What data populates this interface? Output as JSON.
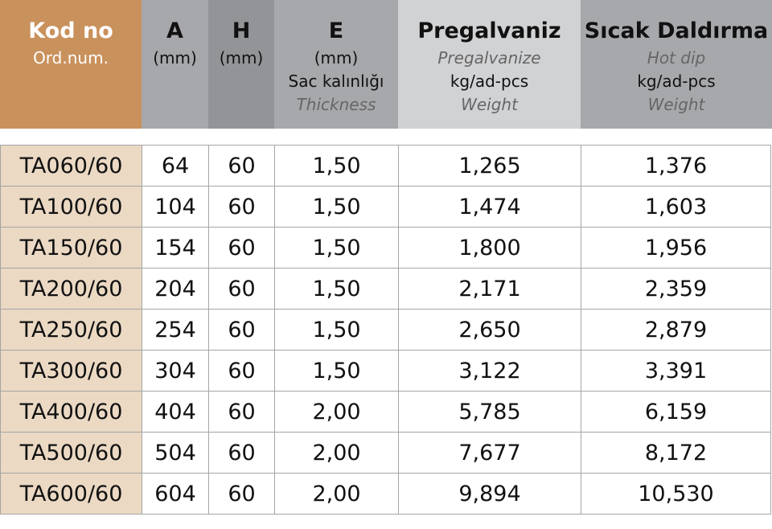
{
  "colors": {
    "kod_header": "#C9915C",
    "a_header": "#A7A8AB",
    "h_header": "#939497",
    "e_header": "#A7A8AB",
    "preg_header": "#D1D2D4",
    "sicak_header": "#A7A8AB",
    "kod_cell": "#EBD9C4"
  },
  "headers": {
    "kod": {
      "title": "Kod no",
      "sub": "Ord.num."
    },
    "a": {
      "title": "A",
      "unit": "(mm)"
    },
    "h": {
      "title": "H",
      "unit": "(mm)"
    },
    "e": {
      "title": "E",
      "unit": "(mm)",
      "sub": "Sac kalınlığı",
      "en": "Thickness"
    },
    "preg": {
      "title": "Pregalvaniz",
      "en": "Pregalvanize",
      "unit": "kg/ad-pcs",
      "en2": "Weight"
    },
    "sicak": {
      "title": "Sıcak Daldırma",
      "en": "Hot dip",
      "unit": "kg/ad-pcs",
      "en2": "Weight"
    }
  },
  "rows": [
    [
      "TA060/60",
      "64",
      "60",
      "1,50",
      "1,265",
      "1,376"
    ],
    [
      "TA100/60",
      "104",
      "60",
      "1,50",
      "1,474",
      "1,603"
    ],
    [
      "TA150/60",
      "154",
      "60",
      "1,50",
      "1,800",
      "1,956"
    ],
    [
      "TA200/60",
      "204",
      "60",
      "1,50",
      "2,171",
      "2,359"
    ],
    [
      "TA250/60",
      "254",
      "60",
      "1,50",
      "2,650",
      "2,879"
    ],
    [
      "TA300/60",
      "304",
      "60",
      "1,50",
      "3,122",
      "3,391"
    ],
    [
      "TA400/60",
      "404",
      "60",
      "2,00",
      "5,785",
      "6,159"
    ],
    [
      "TA500/60",
      "504",
      "60",
      "2,00",
      "7,677",
      "8,172"
    ],
    [
      "TA600/60",
      "604",
      "60",
      "2,00",
      "9,894",
      "10,530"
    ]
  ]
}
